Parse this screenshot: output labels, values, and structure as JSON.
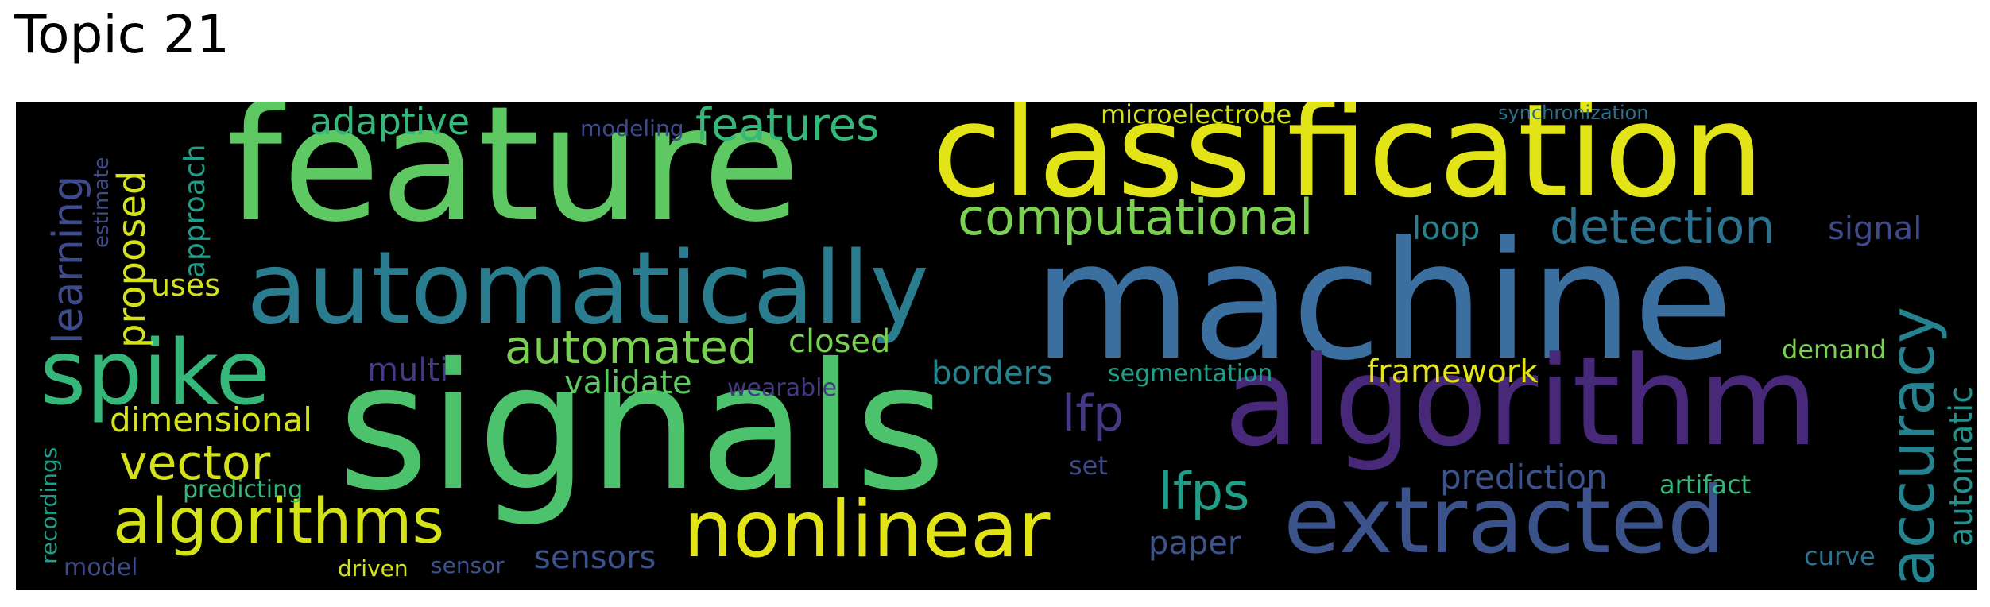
{
  "title": "Topic 21",
  "words": {
    "feature": "feature",
    "classification": "classification",
    "machine": "machine",
    "signals": "signals",
    "automatically": "automatically",
    "algorithm": "algorithm",
    "spike": "spike",
    "extracted": "extracted",
    "nonlinear": "nonlinear",
    "algorithms": "algorithms",
    "accuracy": "accuracy",
    "computational": "computational",
    "automated": "automated",
    "detection": "detection",
    "vector": "vector",
    "features": "features",
    "lfps": "lfps",
    "learning": "learning",
    "proposed": "proposed",
    "lfp": "lfp",
    "adaptive": "adaptive",
    "dimensional": "dimensional",
    "prediction": "prediction",
    "approach": "approach",
    "automatic": "automatic",
    "framework": "framework",
    "closed": "closed",
    "borders": "borders",
    "validate": "validate",
    "sensors": "sensors",
    "loop": "loop",
    "signal": "signal",
    "multi": "multi",
    "paper": "paper",
    "uses": "uses",
    "microelectrode": "microelectrode",
    "estimate": "estimate",
    "recordings": "recordings",
    "demand": "demand",
    "artifact": "artifact",
    "curve": "curve",
    "segmentation": "segmentation",
    "wearable": "wearable",
    "modeling": "modeling",
    "predicting": "predicting",
    "set": "set",
    "model": "model",
    "driven": "driven",
    "sensor": "sensor",
    "synchronization": "synchronization"
  },
  "colors": {
    "background": "#000000",
    "yellow": "#e2e418",
    "light_green": "#b5de2b",
    "green": "#5ec962",
    "teal_green": "#35b779",
    "teal": "#26828e",
    "cyan": "#1f9e89",
    "steel_blue": "#3b528b",
    "blue": "#31688e",
    "purple": "#482878",
    "indigo": "#443a83"
  }
}
